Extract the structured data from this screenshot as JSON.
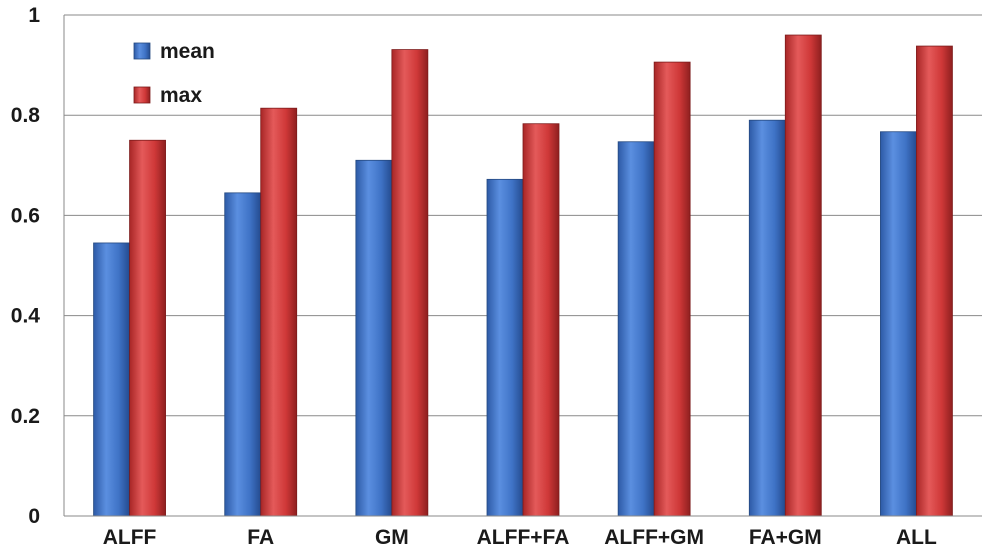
{
  "chart_data": {
    "type": "bar",
    "categories": [
      "ALFF",
      "FA",
      "GM",
      "ALFF+FA",
      "ALFF+GM",
      "FA+GM",
      "ALL"
    ],
    "series": [
      {
        "name": "mean",
        "values": [
          0.545,
          0.645,
          0.71,
          0.672,
          0.747,
          0.79,
          0.767
        ],
        "color": "#3f73c6"
      },
      {
        "name": "max",
        "values": [
          0.75,
          0.814,
          0.931,
          0.783,
          0.906,
          0.96,
          0.938
        ],
        "color": "#d23a3a"
      }
    ],
    "ylim": [
      0,
      1
    ],
    "yticks": [
      {
        "value": 0,
        "label": "0"
      },
      {
        "value": 0.2,
        "label": "0.2"
      },
      {
        "value": 0.4,
        "label": "0.4"
      },
      {
        "value": 0.6,
        "label": "0.6"
      },
      {
        "value": 0.8,
        "label": "0.8"
      },
      {
        "value": 1,
        "label": "1"
      }
    ],
    "title": "",
    "xlabel": "",
    "ylabel": "",
    "grid": true,
    "legend_position": "top-left"
  }
}
